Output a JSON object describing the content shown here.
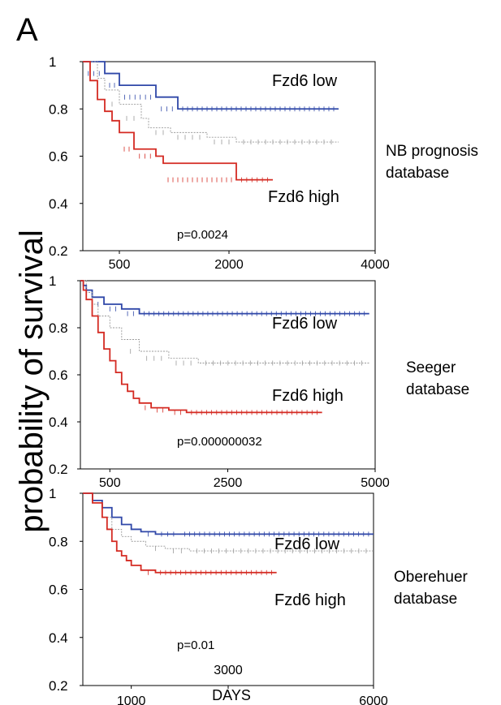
{
  "figure": {
    "panel_letter": "A",
    "y_axis_label": "probability of survival",
    "x_axis_label": "DAYS"
  },
  "colors": {
    "low": "#2f47a8",
    "high": "#d42a22",
    "overall": "#9a9a9a",
    "axis": "#000000"
  },
  "chart_data": [
    {
      "type": "line",
      "title": "",
      "database_label": [
        "NB prognosis",
        "database"
      ],
      "pvalue": "p=0.0024",
      "xlim": [
        0,
        4000
      ],
      "ylim": [
        0.2,
        1.0
      ],
      "x_ticks": [
        {
          "value": 500,
          "label": "500"
        },
        {
          "value": 2000,
          "label": "2000"
        },
        {
          "value": 4000,
          "label": "4000"
        }
      ],
      "y_ticks": [
        {
          "value": 1.0,
          "label": "1"
        },
        {
          "value": 0.8,
          "label": "0.8"
        },
        {
          "value": 0.6,
          "label": "0.6"
        },
        {
          "value": 0.4,
          "label": "0.4"
        },
        {
          "value": 0.2,
          "label": "0.2"
        }
      ],
      "series": [
        {
          "name": "Fzd6 low",
          "key": "low",
          "x": [
            0,
            300,
            500,
            1000,
            1300,
            3500
          ],
          "y": [
            1.0,
            0.95,
            0.9,
            0.85,
            0.8,
            0.8
          ]
        },
        {
          "key": "overall",
          "x": [
            0,
            200,
            300,
            500,
            800,
            900,
            1200,
            1700,
            2100,
            3500
          ],
          "y": [
            1.0,
            0.93,
            0.88,
            0.82,
            0.76,
            0.72,
            0.7,
            0.68,
            0.66,
            0.66
          ]
        },
        {
          "name": "Fzd6 high",
          "key": "high",
          "x": [
            0,
            100,
            200,
            300,
            400,
            500,
            700,
            1000,
            1100,
            2100,
            2600
          ],
          "y": [
            1.0,
            0.92,
            0.84,
            0.79,
            0.75,
            0.7,
            0.63,
            0.6,
            0.57,
            0.5,
            0.5
          ]
        }
      ]
    },
    {
      "type": "line",
      "title": "",
      "database_label": [
        "Seeger",
        "database"
      ],
      "pvalue": "p=0.000000032",
      "xlim": [
        0,
        5000
      ],
      "ylim": [
        0.2,
        1.0
      ],
      "x_ticks": [
        {
          "value": 500,
          "label": "500"
        },
        {
          "value": 2500,
          "label": "2500"
        },
        {
          "value": 5000,
          "label": "5000"
        }
      ],
      "y_ticks": [
        {
          "value": 1.0,
          "label": "1"
        },
        {
          "value": 0.8,
          "label": "0.8"
        },
        {
          "value": 0.6,
          "label": "0.6"
        },
        {
          "value": 0.4,
          "label": "0.4"
        },
        {
          "value": 0.2,
          "label": "0.2"
        }
      ],
      "series": [
        {
          "name": "Fzd6 low",
          "key": "low",
          "x": [
            0,
            50,
            100,
            200,
            400,
            700,
            1000,
            4900
          ],
          "y": [
            1.0,
            0.98,
            0.96,
            0.93,
            0.9,
            0.88,
            0.86,
            0.86
          ]
        },
        {
          "key": "overall",
          "x": [
            0,
            100,
            200,
            300,
            500,
            700,
            1000,
            1500,
            2000,
            4900
          ],
          "y": [
            1.0,
            0.95,
            0.9,
            0.85,
            0.8,
            0.75,
            0.7,
            0.67,
            0.65,
            0.65
          ]
        },
        {
          "name": "Fzd6 high",
          "key": "high",
          "x": [
            0,
            50,
            100,
            200,
            300,
            400,
            500,
            600,
            700,
            800,
            900,
            1000,
            1200,
            1500,
            1800,
            4100
          ],
          "y": [
            1.0,
            0.96,
            0.92,
            0.85,
            0.78,
            0.71,
            0.66,
            0.61,
            0.56,
            0.53,
            0.5,
            0.48,
            0.46,
            0.45,
            0.44,
            0.44
          ]
        }
      ]
    },
    {
      "type": "line",
      "title": "",
      "database_label": [
        "Oberehuer",
        "database"
      ],
      "pvalue": "p=0.01",
      "xlim": [
        0,
        6000
      ],
      "ylim": [
        0.2,
        1.0
      ],
      "x_ticks": [
        {
          "value": 1000,
          "label": "1000"
        },
        {
          "value": 3000,
          "label": "3000"
        },
        {
          "value": 6000,
          "label": "6000"
        }
      ],
      "y_ticks": [
        {
          "value": 1.0,
          "label": "1"
        },
        {
          "value": 0.8,
          "label": "0.8"
        },
        {
          "value": 0.6,
          "label": "0.6"
        },
        {
          "value": 0.4,
          "label": "0.4"
        },
        {
          "value": 0.2,
          "label": "0.2"
        }
      ],
      "series": [
        {
          "name": "Fzd6 low",
          "key": "low",
          "x": [
            0,
            200,
            400,
            600,
            800,
            1000,
            1200,
            1500,
            2000,
            6000
          ],
          "y": [
            1.0,
            0.97,
            0.94,
            0.9,
            0.87,
            0.85,
            0.84,
            0.83,
            0.83,
            0.83
          ]
        },
        {
          "key": "overall",
          "x": [
            0,
            200,
            400,
            600,
            800,
            1000,
            1300,
            1700,
            2200,
            6000
          ],
          "y": [
            1.0,
            0.96,
            0.9,
            0.85,
            0.82,
            0.8,
            0.78,
            0.77,
            0.76,
            0.76
          ]
        },
        {
          "name": "Fzd6 high",
          "key": "high",
          "x": [
            0,
            200,
            400,
            500,
            600,
            700,
            800,
            900,
            1000,
            1200,
            1500,
            4000
          ],
          "y": [
            1.0,
            0.96,
            0.9,
            0.85,
            0.8,
            0.76,
            0.74,
            0.72,
            0.7,
            0.68,
            0.67,
            0.67
          ]
        }
      ]
    }
  ]
}
